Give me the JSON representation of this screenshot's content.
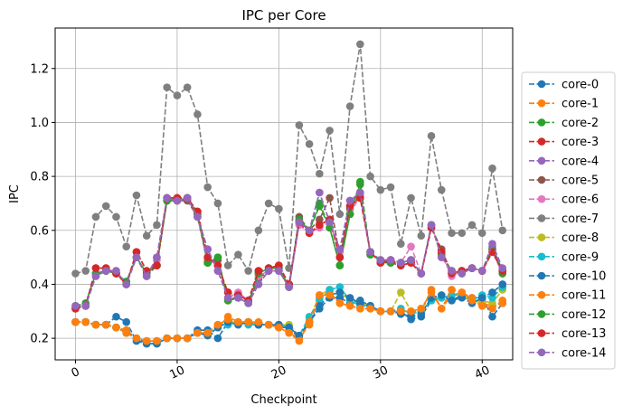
{
  "chart_data": {
    "type": "line",
    "title": "IPC per Core",
    "xlabel": "Checkpoint",
    "ylabel": "IPC",
    "xlim": [
      -2,
      43
    ],
    "ylim": [
      0.12,
      1.35
    ],
    "xticks": [
      0,
      10,
      20,
      30,
      40
    ],
    "yticks": [
      0.2,
      0.4,
      0.6,
      0.8,
      1.0,
      1.2
    ],
    "xtick_labels": [
      "0",
      "10",
      "20",
      "30",
      "40"
    ],
    "ytick_labels": [
      "0.2",
      "0.4",
      "0.6",
      "0.8",
      "1.0",
      "1.2"
    ],
    "grid": true,
    "legend_position": "right",
    "x": [
      0,
      1,
      2,
      3,
      4,
      5,
      6,
      7,
      8,
      9,
      10,
      11,
      12,
      13,
      14,
      15,
      16,
      17,
      18,
      19,
      20,
      21,
      22,
      23,
      24,
      25,
      26,
      27,
      28,
      29,
      30,
      31,
      32,
      33,
      34,
      35,
      36,
      37,
      38,
      39,
      40,
      41,
      42
    ],
    "series": [
      {
        "name": "core-0",
        "color": "#1f77b4",
        "values": [
          0.26,
          0.26,
          0.25,
          0.25,
          0.28,
          0.26,
          0.19,
          0.18,
          0.18,
          0.2,
          0.2,
          0.2,
          0.23,
          0.23,
          0.2,
          0.26,
          0.26,
          0.26,
          0.25,
          0.25,
          0.24,
          0.24,
          0.2,
          0.26,
          0.31,
          0.35,
          0.35,
          0.33,
          0.34,
          0.32,
          0.3,
          0.3,
          0.3,
          0.27,
          0.28,
          0.34,
          0.35,
          0.34,
          0.36,
          0.35,
          0.35,
          0.28,
          0.33
        ]
      },
      {
        "name": "core-1",
        "color": "#ff7f0e",
        "values": [
          0.26,
          0.26,
          0.25,
          0.25,
          0.24,
          0.23,
          0.2,
          0.19,
          0.19,
          0.2,
          0.2,
          0.2,
          0.22,
          0.22,
          0.24,
          0.28,
          0.26,
          0.26,
          0.25,
          0.25,
          0.24,
          0.22,
          0.2,
          0.25,
          0.35,
          0.37,
          0.33,
          0.32,
          0.31,
          0.31,
          0.3,
          0.3,
          0.3,
          0.3,
          0.3,
          0.38,
          0.31,
          0.36,
          0.37,
          0.35,
          0.33,
          0.32,
          0.33
        ]
      },
      {
        "name": "core-2",
        "color": "#2ca02c",
        "values": [
          0.32,
          0.33,
          0.44,
          0.45,
          0.44,
          0.41,
          0.5,
          0.44,
          0.47,
          0.71,
          0.71,
          0.72,
          0.66,
          0.48,
          0.5,
          0.34,
          0.35,
          0.33,
          0.44,
          0.46,
          0.46,
          0.39,
          0.64,
          0.6,
          0.7,
          0.61,
          0.47,
          0.66,
          0.78,
          0.51,
          0.49,
          0.48,
          0.48,
          0.49,
          0.44,
          0.62,
          0.51,
          0.45,
          0.44,
          0.46,
          0.45,
          0.53,
          0.44
        ]
      },
      {
        "name": "core-3",
        "color": "#d62728",
        "values": [
          0.31,
          0.32,
          0.46,
          0.46,
          0.44,
          0.4,
          0.52,
          0.45,
          0.47,
          0.72,
          0.72,
          0.72,
          0.67,
          0.5,
          0.47,
          0.37,
          0.36,
          0.34,
          0.45,
          0.46,
          0.47,
          0.4,
          0.63,
          0.59,
          0.62,
          0.64,
          0.5,
          0.69,
          0.72,
          0.52,
          0.48,
          0.49,
          0.47,
          0.48,
          0.44,
          0.61,
          0.52,
          0.44,
          0.45,
          0.46,
          0.45,
          0.52,
          0.45
        ]
      },
      {
        "name": "core-4",
        "color": "#9467bd",
        "values": [
          0.32,
          0.32,
          0.43,
          0.45,
          0.45,
          0.4,
          0.5,
          0.43,
          0.5,
          0.72,
          0.71,
          0.72,
          0.65,
          0.53,
          0.45,
          0.35,
          0.35,
          0.33,
          0.4,
          0.45,
          0.45,
          0.39,
          0.63,
          0.6,
          0.74,
          0.63,
          0.53,
          0.71,
          0.74,
          0.52,
          0.49,
          0.49,
          0.48,
          0.49,
          0.44,
          0.62,
          0.5,
          0.45,
          0.44,
          0.46,
          0.45,
          0.54,
          0.45
        ]
      },
      {
        "name": "core-5",
        "color": "#8c564b",
        "values": [
          0.31,
          0.32,
          0.44,
          0.45,
          0.44,
          0.4,
          0.5,
          0.43,
          0.47,
          0.71,
          0.71,
          0.71,
          0.65,
          0.48,
          0.49,
          0.34,
          0.35,
          0.33,
          0.42,
          0.45,
          0.45,
          0.39,
          0.65,
          0.6,
          0.64,
          0.72,
          0.5,
          0.68,
          0.73,
          0.52,
          0.48,
          0.48,
          0.47,
          0.48,
          0.44,
          0.61,
          0.53,
          0.44,
          0.45,
          0.46,
          0.45,
          0.53,
          0.45
        ]
      },
      {
        "name": "core-6",
        "color": "#e377c2",
        "values": [
          0.31,
          0.32,
          0.44,
          0.45,
          0.44,
          0.4,
          0.5,
          0.43,
          0.49,
          0.72,
          0.71,
          0.72,
          0.65,
          0.49,
          0.47,
          0.35,
          0.37,
          0.34,
          0.43,
          0.45,
          0.45,
          0.39,
          0.62,
          0.59,
          0.61,
          0.63,
          0.52,
          0.66,
          0.73,
          0.51,
          0.49,
          0.49,
          0.48,
          0.54,
          0.44,
          0.62,
          0.51,
          0.43,
          0.45,
          0.46,
          0.45,
          0.52,
          0.44
        ]
      },
      {
        "name": "core-7",
        "color": "#7f7f7f",
        "values": [
          0.44,
          0.45,
          0.65,
          0.69,
          0.65,
          0.54,
          0.73,
          0.58,
          0.62,
          1.13,
          1.1,
          1.13,
          1.03,
          0.76,
          0.7,
          0.47,
          0.51,
          0.45,
          0.6,
          0.7,
          0.68,
          0.46,
          0.99,
          0.92,
          0.81,
          0.97,
          0.66,
          1.06,
          1.29,
          0.8,
          0.75,
          0.76,
          0.55,
          0.72,
          0.58,
          0.95,
          0.75,
          0.59,
          0.59,
          0.62,
          0.59,
          0.83,
          0.6
        ]
      },
      {
        "name": "core-8",
        "color": "#bcbd22",
        "values": [
          0.26,
          0.26,
          0.25,
          0.25,
          0.24,
          0.22,
          0.2,
          0.19,
          0.19,
          0.2,
          0.2,
          0.2,
          0.22,
          0.22,
          0.24,
          0.26,
          0.26,
          0.26,
          0.25,
          0.25,
          0.25,
          0.25,
          0.21,
          0.27,
          0.36,
          0.38,
          0.37,
          0.34,
          0.33,
          0.32,
          0.3,
          0.3,
          0.37,
          0.3,
          0.31,
          0.35,
          0.35,
          0.36,
          0.36,
          0.33,
          0.34,
          0.33,
          0.38
        ]
      },
      {
        "name": "core-9",
        "color": "#17becf",
        "values": [
          0.26,
          0.26,
          0.25,
          0.25,
          0.24,
          0.22,
          0.2,
          0.19,
          0.19,
          0.2,
          0.2,
          0.2,
          0.22,
          0.22,
          0.25,
          0.25,
          0.26,
          0.25,
          0.25,
          0.25,
          0.25,
          0.24,
          0.21,
          0.28,
          0.34,
          0.38,
          0.39,
          0.34,
          0.32,
          0.32,
          0.3,
          0.3,
          0.31,
          0.29,
          0.3,
          0.34,
          0.35,
          0.36,
          0.36,
          0.34,
          0.36,
          0.35,
          0.39
        ]
      },
      {
        "name": "core-10",
        "color": "#1f77b4",
        "values": [
          0.26,
          0.26,
          0.25,
          0.25,
          0.24,
          0.22,
          0.2,
          0.18,
          0.18,
          0.2,
          0.2,
          0.2,
          0.22,
          0.21,
          0.24,
          0.26,
          0.25,
          0.26,
          0.25,
          0.25,
          0.25,
          0.24,
          0.21,
          0.26,
          0.32,
          0.36,
          0.37,
          0.35,
          0.33,
          0.32,
          0.3,
          0.3,
          0.29,
          0.28,
          0.29,
          0.35,
          0.36,
          0.34,
          0.35,
          0.33,
          0.35,
          0.37,
          0.4
        ]
      },
      {
        "name": "core-11",
        "color": "#ff7f0e",
        "values": [
          0.26,
          0.26,
          0.25,
          0.25,
          0.24,
          0.22,
          0.2,
          0.19,
          0.19,
          0.2,
          0.2,
          0.2,
          0.22,
          0.22,
          0.25,
          0.27,
          0.26,
          0.26,
          0.26,
          0.25,
          0.24,
          0.22,
          0.19,
          0.26,
          0.36,
          0.36,
          0.33,
          0.32,
          0.31,
          0.31,
          0.3,
          0.3,
          0.3,
          0.3,
          0.31,
          0.37,
          0.31,
          0.38,
          0.37,
          0.34,
          0.32,
          0.31,
          0.34
        ]
      },
      {
        "name": "core-12",
        "color": "#2ca02c",
        "values": [
          0.31,
          0.32,
          0.44,
          0.45,
          0.44,
          0.41,
          0.5,
          0.44,
          0.47,
          0.71,
          0.71,
          0.72,
          0.66,
          0.48,
          0.5,
          0.34,
          0.35,
          0.33,
          0.44,
          0.46,
          0.46,
          0.39,
          0.64,
          0.6,
          0.69,
          0.61,
          0.47,
          0.66,
          0.77,
          0.51,
          0.49,
          0.48,
          0.48,
          0.49,
          0.44,
          0.62,
          0.51,
          0.45,
          0.44,
          0.46,
          0.45,
          0.53,
          0.44
        ]
      },
      {
        "name": "core-13",
        "color": "#d62728",
        "values": [
          0.31,
          0.32,
          0.46,
          0.46,
          0.44,
          0.4,
          0.52,
          0.45,
          0.47,
          0.72,
          0.72,
          0.72,
          0.67,
          0.5,
          0.47,
          0.37,
          0.36,
          0.34,
          0.45,
          0.46,
          0.47,
          0.4,
          0.63,
          0.59,
          0.62,
          0.64,
          0.5,
          0.69,
          0.72,
          0.52,
          0.48,
          0.49,
          0.47,
          0.48,
          0.44,
          0.61,
          0.52,
          0.44,
          0.45,
          0.46,
          0.45,
          0.52,
          0.45
        ]
      },
      {
        "name": "core-14",
        "color": "#9467bd",
        "values": [
          0.32,
          0.32,
          0.43,
          0.45,
          0.45,
          0.4,
          0.5,
          0.43,
          0.5,
          0.72,
          0.71,
          0.72,
          0.65,
          0.53,
          0.45,
          0.35,
          0.35,
          0.33,
          0.4,
          0.45,
          0.45,
          0.39,
          0.63,
          0.6,
          0.74,
          0.63,
          0.53,
          0.71,
          0.74,
          0.52,
          0.49,
          0.49,
          0.48,
          0.49,
          0.44,
          0.62,
          0.5,
          0.45,
          0.44,
          0.46,
          0.45,
          0.55,
          0.46
        ]
      }
    ]
  }
}
